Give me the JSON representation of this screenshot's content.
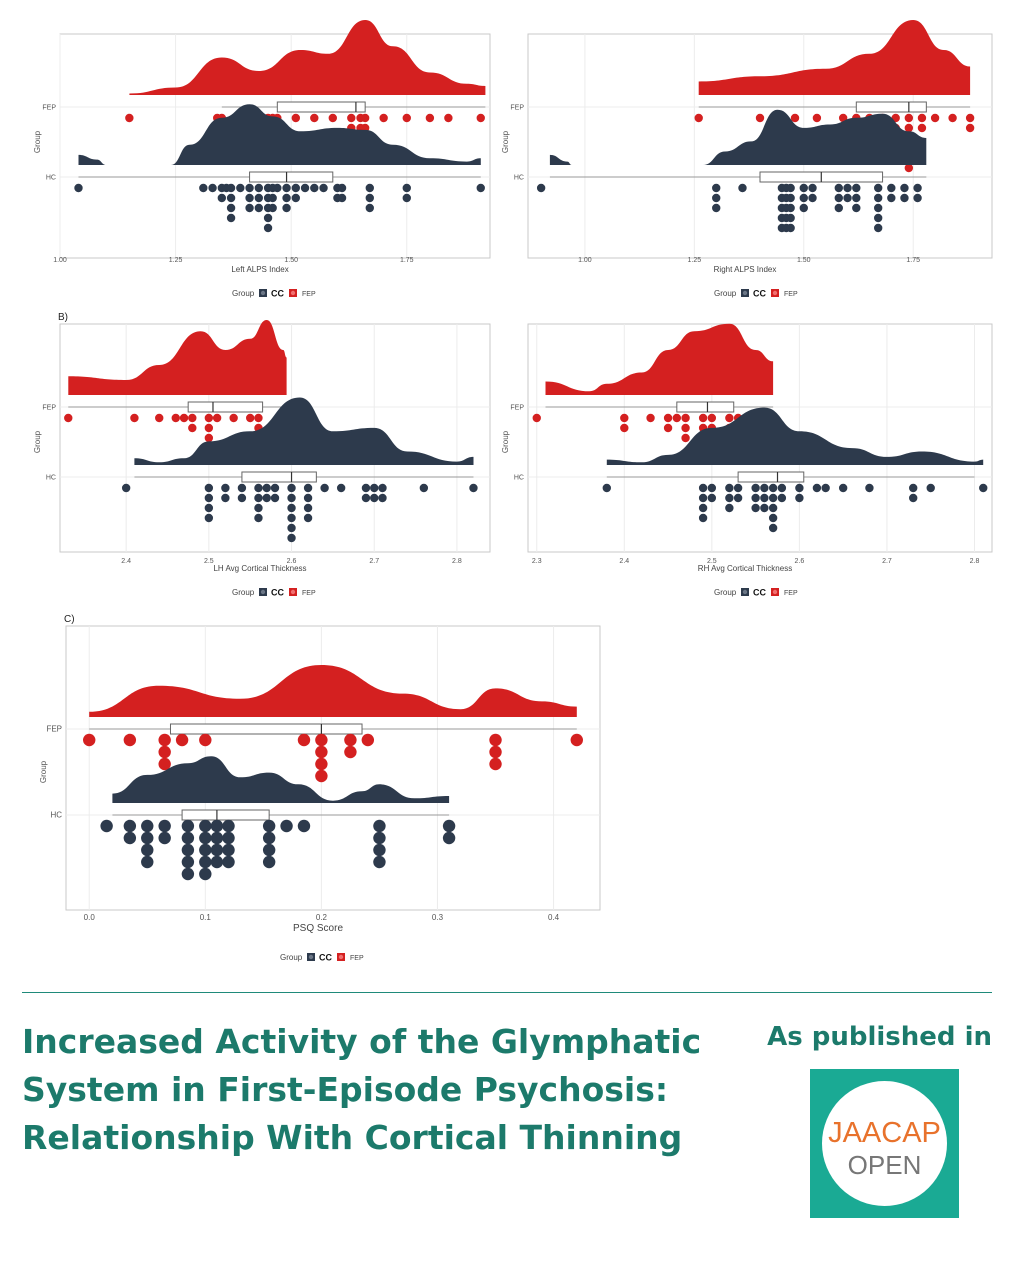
{
  "colors": {
    "fep": "#d42020",
    "hc": "#2d3a4c",
    "accent": "#1c7a6b",
    "logo_bg": "#1aaa94"
  },
  "chart_data": [
    {
      "type": "raincloud",
      "panel": "",
      "xlabel": "Left ALPS Index",
      "ylabel": "Group",
      "xlim": [
        1.0,
        1.93
      ],
      "xticks": [
        "1.00",
        "1.25",
        "1.50",
        "1.75"
      ],
      "xtick_values": [
        1.0,
        1.25,
        1.5,
        1.75
      ],
      "groups": [
        "FEP",
        "HC"
      ],
      "legend": {
        "title": "Group",
        "items": [
          "CC",
          "FEP"
        ]
      },
      "series": [
        {
          "name": "FEP",
          "density": [
            [
              1.15,
              0.02
            ],
            [
              1.25,
              0.1
            ],
            [
              1.35,
              0.5
            ],
            [
              1.43,
              0.32
            ],
            [
              1.52,
              0.6
            ],
            [
              1.58,
              0.55
            ],
            [
              1.66,
              1.0
            ],
            [
              1.72,
              0.65
            ],
            [
              1.8,
              0.3
            ],
            [
              1.88,
              0.15
            ],
            [
              1.92,
              0.12
            ]
          ],
          "box": {
            "q1": 1.47,
            "median": 1.64,
            "q3": 1.66,
            "whisker_low": 1.35,
            "whisker_high": 1.92
          },
          "points": [
            1.15,
            1.34,
            1.35,
            1.39,
            1.42,
            1.42,
            1.44,
            1.45,
            1.46,
            1.47,
            1.51,
            1.55,
            1.59,
            1.63,
            1.63,
            1.63,
            1.63,
            1.65,
            1.65,
            1.65,
            1.66,
            1.66,
            1.66,
            1.7,
            1.75,
            1.8,
            1.84,
            1.91
          ]
        },
        {
          "name": "HC",
          "density": [
            [
              1.04,
              0.15
            ],
            [
              1.08,
              0.08
            ],
            [
              1.1,
              0.0
            ],
            [
              1.24,
              0.0
            ],
            [
              1.28,
              0.3
            ],
            [
              1.35,
              0.7
            ],
            [
              1.41,
              0.9
            ],
            [
              1.46,
              0.72
            ],
            [
              1.52,
              0.5
            ],
            [
              1.6,
              0.55
            ],
            [
              1.66,
              0.52
            ],
            [
              1.72,
              0.3
            ],
            [
              1.8,
              0.1
            ],
            [
              1.88,
              0.05
            ],
            [
              1.91,
              0.1
            ]
          ],
          "box": {
            "q1": 1.41,
            "median": 1.49,
            "q3": 1.59,
            "whisker_low": 1.04,
            "whisker_high": 1.91
          },
          "points": [
            1.04,
            1.31,
            1.33,
            1.35,
            1.35,
            1.36,
            1.37,
            1.37,
            1.37,
            1.37,
            1.39,
            1.41,
            1.41,
            1.41,
            1.43,
            1.43,
            1.43,
            1.45,
            1.45,
            1.45,
            1.45,
            1.45,
            1.46,
            1.46,
            1.46,
            1.47,
            1.49,
            1.49,
            1.49,
            1.51,
            1.51,
            1.53,
            1.55,
            1.57,
            1.6,
            1.6,
            1.61,
            1.61,
            1.67,
            1.67,
            1.67,
            1.75,
            1.75,
            1.91
          ]
        }
      ]
    },
    {
      "type": "raincloud",
      "panel": "",
      "xlabel": "Right ALPS Index",
      "ylabel": "Group",
      "xlim": [
        0.87,
        1.93
      ],
      "xticks": [
        "1.00",
        "1.25",
        "1.50",
        "1.75"
      ],
      "xtick_values": [
        1.0,
        1.25,
        1.5,
        1.75
      ],
      "groups": [
        "FEP",
        "HC"
      ],
      "legend": {
        "title": "Group",
        "items": [
          "CC",
          "FEP"
        ]
      },
      "series": [
        {
          "name": "FEP",
          "density": [
            [
              1.26,
              0.18
            ],
            [
              1.4,
              0.25
            ],
            [
              1.55,
              0.35
            ],
            [
              1.65,
              0.55
            ],
            [
              1.75,
              1.0
            ],
            [
              1.82,
              0.6
            ],
            [
              1.88,
              0.38
            ]
          ],
          "box": {
            "q1": 1.62,
            "median": 1.74,
            "q3": 1.78,
            "whisker_low": 1.26,
            "whisker_high": 1.88
          },
          "points": [
            1.26,
            1.4,
            1.44,
            1.48,
            1.53,
            1.59,
            1.59,
            1.62,
            1.62,
            1.65,
            1.65,
            1.68,
            1.71,
            1.71,
            1.74,
            1.74,
            1.74,
            1.74,
            1.74,
            1.74,
            1.77,
            1.77,
            1.8,
            1.84,
            1.88,
            1.88
          ]
        },
        {
          "name": "HC",
          "density": [
            [
              0.92,
              0.15
            ],
            [
              0.96,
              0.05
            ],
            [
              0.97,
              0.0
            ],
            [
              1.27,
              0.0
            ],
            [
              1.32,
              0.2
            ],
            [
              1.38,
              0.35
            ],
            [
              1.44,
              0.82
            ],
            [
              1.5,
              0.55
            ],
            [
              1.56,
              0.6
            ],
            [
              1.62,
              0.7
            ],
            [
              1.68,
              0.76
            ],
            [
              1.74,
              0.5
            ],
            [
              1.78,
              0.4
            ]
          ],
          "box": {
            "q1": 1.4,
            "median": 1.54,
            "q3": 1.68,
            "whisker_low": 0.92,
            "whisker_high": 1.78
          },
          "points": [
            0.9,
            1.3,
            1.3,
            1.3,
            1.36,
            1.45,
            1.45,
            1.45,
            1.45,
            1.45,
            1.46,
            1.46,
            1.46,
            1.46,
            1.46,
            1.47,
            1.47,
            1.47,
            1.47,
            1.47,
            1.5,
            1.5,
            1.5,
            1.52,
            1.52,
            1.58,
            1.58,
            1.58,
            1.6,
            1.6,
            1.62,
            1.62,
            1.62,
            1.67,
            1.67,
            1.67,
            1.67,
            1.67,
            1.7,
            1.7,
            1.73,
            1.73,
            1.76,
            1.76
          ]
        }
      ]
    },
    {
      "type": "raincloud",
      "panel": "B)",
      "xlabel": "LH Avg Cortical Thickness",
      "ylabel": "Group",
      "xlim": [
        2.32,
        2.84
      ],
      "xticks": [
        "2.4",
        "2.5",
        "2.6",
        "2.7",
        "2.8"
      ],
      "xtick_values": [
        2.4,
        2.5,
        2.6,
        2.7,
        2.8
      ],
      "groups": [
        "FEP",
        "HC"
      ],
      "legend": {
        "title": "Group",
        "items": [
          "CC",
          "FEP"
        ]
      },
      "series": [
        {
          "name": "FEP",
          "density": [
            [
              2.33,
              0.25
            ],
            [
              2.4,
              0.2
            ],
            [
              2.44,
              0.4
            ],
            [
              2.49,
              0.85
            ],
            [
              2.52,
              0.6
            ],
            [
              2.55,
              0.75
            ],
            [
              2.57,
              1.0
            ],
            [
              2.59,
              0.6
            ],
            [
              2.594,
              0.5
            ]
          ],
          "box": {
            "q1": 2.475,
            "median": 2.505,
            "q3": 2.565,
            "whisker_low": 2.33,
            "whisker_high": 2.59
          },
          "points": [
            2.33,
            2.41,
            2.44,
            2.46,
            2.47,
            2.48,
            2.48,
            2.5,
            2.5,
            2.5,
            2.5,
            2.5,
            2.51,
            2.53,
            2.55,
            2.56,
            2.56,
            2.56,
            2.56,
            2.56,
            2.59
          ]
        },
        {
          "name": "HC",
          "density": [
            [
              2.41,
              0.1
            ],
            [
              2.44,
              0.04
            ],
            [
              2.47,
              0.1
            ],
            [
              2.5,
              0.35
            ],
            [
              2.55,
              0.5
            ],
            [
              2.61,
              1.0
            ],
            [
              2.65,
              0.5
            ],
            [
              2.7,
              0.55
            ],
            [
              2.74,
              0.2
            ],
            [
              2.8,
              0.05
            ],
            [
              2.82,
              0.12
            ]
          ],
          "box": {
            "q1": 2.54,
            "median": 2.6,
            "q3": 2.63,
            "whisker_low": 2.41,
            "whisker_high": 2.82
          },
          "points": [
            2.4,
            2.5,
            2.5,
            2.5,
            2.5,
            2.52,
            2.52,
            2.54,
            2.54,
            2.56,
            2.56,
            2.56,
            2.56,
            2.57,
            2.57,
            2.58,
            2.58,
            2.6,
            2.6,
            2.6,
            2.6,
            2.6,
            2.6,
            2.62,
            2.62,
            2.62,
            2.62,
            2.64,
            2.66,
            2.69,
            2.69,
            2.7,
            2.7,
            2.71,
            2.71,
            2.76,
            2.82
          ]
        }
      ]
    },
    {
      "type": "raincloud",
      "panel": "",
      "xlabel": "RH Avg Cortical Thickness",
      "ylabel": "Group",
      "xlim": [
        2.29,
        2.82
      ],
      "xticks": [
        "2.3",
        "2.4",
        "2.5",
        "2.6",
        "2.7",
        "2.8"
      ],
      "xtick_values": [
        2.3,
        2.4,
        2.5,
        2.6,
        2.7,
        2.8
      ],
      "groups": [
        "FEP",
        "HC"
      ],
      "legend": {
        "title": "Group",
        "items": [
          "CC",
          "FEP"
        ]
      },
      "series": [
        {
          "name": "FEP",
          "density": [
            [
              2.31,
              0.18
            ],
            [
              2.36,
              0.05
            ],
            [
              2.38,
              0.15
            ],
            [
              2.42,
              0.3
            ],
            [
              2.45,
              0.6
            ],
            [
              2.48,
              0.85
            ],
            [
              2.52,
              0.95
            ],
            [
              2.55,
              0.6
            ],
            [
              2.57,
              0.45
            ]
          ],
          "box": {
            "q1": 2.46,
            "median": 2.495,
            "q3": 2.525,
            "whisker_low": 2.31,
            "whisker_high": 2.57
          },
          "points": [
            2.3,
            2.4,
            2.4,
            2.43,
            2.45,
            2.45,
            2.46,
            2.47,
            2.47,
            2.47,
            2.49,
            2.49,
            2.5,
            2.5,
            2.52,
            2.52,
            2.53,
            2.55
          ]
        },
        {
          "name": "HC",
          "density": [
            [
              2.38,
              0.08
            ],
            [
              2.42,
              0.04
            ],
            [
              2.45,
              0.15
            ],
            [
              2.5,
              0.55
            ],
            [
              2.56,
              0.85
            ],
            [
              2.6,
              0.5
            ],
            [
              2.66,
              0.25
            ],
            [
              2.7,
              0.12
            ],
            [
              2.74,
              0.2
            ],
            [
              2.8,
              0.05
            ],
            [
              2.81,
              0.08
            ]
          ],
          "box": {
            "q1": 2.53,
            "median": 2.575,
            "q3": 2.605,
            "whisker_low": 2.38,
            "whisker_high": 2.8
          },
          "points": [
            2.38,
            2.49,
            2.49,
            2.49,
            2.49,
            2.5,
            2.5,
            2.52,
            2.52,
            2.52,
            2.53,
            2.53,
            2.55,
            2.55,
            2.55,
            2.56,
            2.56,
            2.56,
            2.57,
            2.57,
            2.57,
            2.57,
            2.57,
            2.58,
            2.58,
            2.6,
            2.6,
            2.62,
            2.63,
            2.65,
            2.68,
            2.73,
            2.73,
            2.75,
            2.81
          ]
        }
      ]
    },
    {
      "type": "raincloud",
      "panel": "C)",
      "xlabel": "PSQ Score",
      "ylabel": "Group",
      "xlim": [
        -0.02,
        0.44
      ],
      "xticks": [
        "0.0",
        "0.1",
        "0.2",
        "0.3",
        "0.4"
      ],
      "xtick_values": [
        0.0,
        0.1,
        0.2,
        0.3,
        0.4
      ],
      "groups": [
        "FEP",
        "HC"
      ],
      "legend": {
        "title": "Group",
        "items": [
          "CC",
          "FEP"
        ]
      },
      "series": [
        {
          "name": "FEP",
          "density": [
            [
              0.0,
              0.1
            ],
            [
              0.06,
              0.6
            ],
            [
              0.13,
              0.35
            ],
            [
              0.2,
              1.0
            ],
            [
              0.27,
              0.45
            ],
            [
              0.32,
              0.15
            ],
            [
              0.35,
              0.55
            ],
            [
              0.39,
              0.3
            ],
            [
              0.42,
              0.2
            ]
          ],
          "box": {
            "q1": 0.07,
            "median": 0.2,
            "q3": 0.235,
            "whisker_low": 0.0,
            "whisker_high": 0.42
          },
          "points": [
            0.0,
            0.035,
            0.065,
            0.065,
            0.065,
            0.08,
            0.1,
            0.185,
            0.2,
            0.2,
            0.2,
            0.2,
            0.225,
            0.225,
            0.24,
            0.35,
            0.35,
            0.35,
            0.42
          ]
        },
        {
          "name": "HC",
          "density": [
            [
              0.02,
              0.2
            ],
            [
              0.05,
              0.6
            ],
            [
              0.085,
              0.85
            ],
            [
              0.105,
              1.0
            ],
            [
              0.13,
              0.55
            ],
            [
              0.155,
              0.65
            ],
            [
              0.18,
              0.4
            ],
            [
              0.21,
              0.05
            ],
            [
              0.235,
              0.25
            ],
            [
              0.25,
              0.4
            ],
            [
              0.28,
              0.1
            ],
            [
              0.31,
              0.15
            ]
          ],
          "box": {
            "q1": 0.08,
            "median": 0.11,
            "q3": 0.155,
            "whisker_low": 0.02,
            "whisker_high": 0.31
          },
          "points": [
            0.015,
            0.035,
            0.035,
            0.05,
            0.05,
            0.05,
            0.05,
            0.065,
            0.065,
            0.085,
            0.085,
            0.085,
            0.085,
            0.085,
            0.1,
            0.1,
            0.1,
            0.1,
            0.1,
            0.11,
            0.11,
            0.11,
            0.11,
            0.12,
            0.12,
            0.12,
            0.12,
            0.155,
            0.155,
            0.155,
            0.155,
            0.17,
            0.185,
            0.25,
            0.25,
            0.25,
            0.25,
            0.31,
            0.31
          ]
        }
      ]
    }
  ],
  "footer": {
    "title_lines": [
      "Increased Activity of the Glymphatic",
      "System in First-Episode Psychosis:",
      "Relationship With Cortical Thinning"
    ],
    "published_label": "As published in",
    "logo_line1": "JAACAP",
    "logo_line2": "OPEN"
  }
}
